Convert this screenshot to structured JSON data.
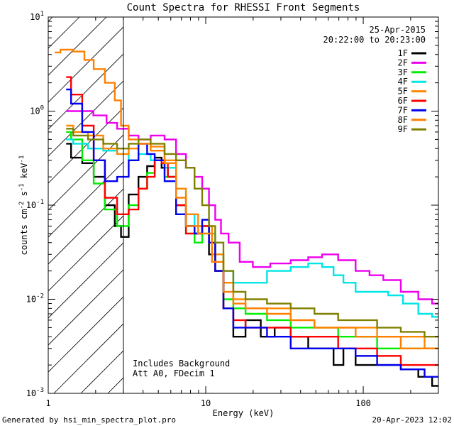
{
  "chart_data": {
    "type": "line",
    "title": "Count Spectra for RHESSI Front Segments",
    "xlabel": "Energy (keV)",
    "ylabel_main": "counts cm",
    "ylabel_sup1": "-2",
    "ylabel_mid1": " s",
    "ylabel_sup2": "-1",
    "ylabel_mid2": " keV",
    "ylabel_sup3": "-1",
    "x_scale": "log",
    "y_scale": "log",
    "xlim": [
      1,
      300
    ],
    "ylim": [
      0.001,
      10
    ],
    "x_ticks": [
      {
        "value": 1,
        "label": "1"
      },
      {
        "value": 10,
        "label": "10"
      },
      {
        "value": 100,
        "label": "100"
      }
    ],
    "y_ticks": [
      {
        "value": 0.001,
        "base": "10",
        "exp": "-3"
      },
      {
        "value": 0.01,
        "base": "10",
        "exp": "-2"
      },
      {
        "value": 0.1,
        "base": "10",
        "exp": "-1"
      },
      {
        "value": 1,
        "base": "10",
        "exp": "0"
      },
      {
        "value": 10,
        "base": "10",
        "exp": "1"
      }
    ],
    "info_date": "25-Apr-2015",
    "info_time": "20:22:00 to 20:23:00",
    "annotations": [
      "Includes Background",
      "Att A0, FDecim 1"
    ],
    "hatched_below_energy": 3,
    "footer_left": "Generated by hsi_min_spectra_plot.pro",
    "footer_right": "20-Apr-2023 12:02",
    "series": [
      {
        "name": "1F",
        "color": "#000000",
        "points": [
          [
            1.3,
            0.45
          ],
          [
            1.5,
            0.32
          ],
          [
            1.8,
            0.28
          ],
          [
            2.1,
            0.2
          ],
          [
            2.5,
            0.1
          ],
          [
            2.8,
            0.06
          ],
          [
            3.0,
            0.046
          ],
          [
            3.5,
            0.13
          ],
          [
            4.0,
            0.2
          ],
          [
            4.5,
            0.26
          ],
          [
            5.0,
            0.32
          ],
          [
            5.5,
            0.25
          ],
          [
            6.0,
            0.2
          ],
          [
            7.0,
            0.1
          ],
          [
            8.0,
            0.06
          ],
          [
            9.0,
            0.05
          ],
          [
            10.0,
            0.06
          ],
          [
            11.0,
            0.03
          ],
          [
            12.0,
            0.02
          ],
          [
            14.0,
            0.008
          ],
          [
            16.0,
            0.004
          ],
          [
            20.0,
            0.006
          ],
          [
            25.0,
            0.004
          ],
          [
            30.0,
            0.005
          ],
          [
            40.0,
            0.004
          ],
          [
            50.0,
            0.003
          ],
          [
            60.0,
            0.003
          ],
          [
            70.0,
            0.002
          ],
          [
            80.0,
            0.003
          ],
          [
            100.0,
            0.002
          ],
          [
            150.0,
            0.002
          ],
          [
            200.0,
            0.0018
          ],
          [
            250.0,
            0.0015
          ],
          [
            300.0,
            0.0012
          ]
        ]
      },
      {
        "name": "2F",
        "color": "#ee00ee",
        "points": [
          [
            1.3,
            1.0
          ],
          [
            1.7,
            1.0
          ],
          [
            2.2,
            0.9
          ],
          [
            2.5,
            0.75
          ],
          [
            3.0,
            0.65
          ],
          [
            3.5,
            0.55
          ],
          [
            4.0,
            0.5
          ],
          [
            5.0,
            0.55
          ],
          [
            6.0,
            0.5
          ],
          [
            7.0,
            0.35
          ],
          [
            8.0,
            0.25
          ],
          [
            9.0,
            0.2
          ],
          [
            10.0,
            0.15
          ],
          [
            11.0,
            0.1
          ],
          [
            12.0,
            0.07
          ],
          [
            13.0,
            0.05
          ],
          [
            15.0,
            0.04
          ],
          [
            18.0,
            0.025
          ],
          [
            22.0,
            0.022
          ],
          [
            30.0,
            0.024
          ],
          [
            40.0,
            0.026
          ],
          [
            50.0,
            0.028
          ],
          [
            60.0,
            0.03
          ],
          [
            80.0,
            0.026
          ],
          [
            100.0,
            0.02
          ],
          [
            120.0,
            0.018
          ],
          [
            150.0,
            0.016
          ],
          [
            200.0,
            0.012
          ],
          [
            250.0,
            0.01
          ],
          [
            300.0,
            0.009
          ]
        ]
      },
      {
        "name": "3F",
        "color": "#00ee00",
        "points": [
          [
            1.3,
            0.6
          ],
          [
            1.5,
            0.5
          ],
          [
            1.8,
            0.3
          ],
          [
            2.1,
            0.17
          ],
          [
            2.5,
            0.09
          ],
          [
            3.0,
            0.06
          ],
          [
            3.5,
            0.1
          ],
          [
            4.0,
            0.15
          ],
          [
            4.5,
            0.22
          ],
          [
            5.0,
            0.3
          ],
          [
            6.0,
            0.2
          ],
          [
            7.0,
            0.08
          ],
          [
            8.0,
            0.05
          ],
          [
            9.0,
            0.04
          ],
          [
            10.0,
            0.05
          ],
          [
            11.0,
            0.04
          ],
          [
            12.0,
            0.02
          ],
          [
            14.0,
            0.01
          ],
          [
            16.0,
            0.008
          ],
          [
            20.0,
            0.007
          ],
          [
            30.0,
            0.006
          ],
          [
            40.0,
            0.005
          ],
          [
            60.0,
            0.005
          ],
          [
            80.0,
            0.004
          ],
          [
            100.0,
            0.004
          ],
          [
            150.0,
            0.003
          ],
          [
            200.0,
            0.003
          ],
          [
            300.0,
            0.003
          ]
        ]
      },
      {
        "name": "4F",
        "color": "#00e5e5",
        "points": [
          [
            1.3,
            0.5
          ],
          [
            1.6,
            0.45
          ],
          [
            2.0,
            0.4
          ],
          [
            2.5,
            0.38
          ],
          [
            3.0,
            0.35
          ],
          [
            3.5,
            0.3
          ],
          [
            4.0,
            0.35
          ],
          [
            5.0,
            0.3
          ],
          [
            6.0,
            0.25
          ],
          [
            7.0,
            0.15
          ],
          [
            8.0,
            0.08
          ],
          [
            9.0,
            0.06
          ],
          [
            10.0,
            0.06
          ],
          [
            11.0,
            0.05
          ],
          [
            12.0,
            0.03
          ],
          [
            14.0,
            0.02
          ],
          [
            16.0,
            0.015
          ],
          [
            20.0,
            0.015
          ],
          [
            30.0,
            0.02
          ],
          [
            40.0,
            0.022
          ],
          [
            50.0,
            0.024
          ],
          [
            60.0,
            0.022
          ],
          [
            70.0,
            0.018
          ],
          [
            80.0,
            0.015
          ],
          [
            100.0,
            0.012
          ],
          [
            130.0,
            0.012
          ],
          [
            160.0,
            0.011
          ],
          [
            200.0,
            0.009
          ],
          [
            250.0,
            0.007
          ],
          [
            300.0,
            0.0065
          ]
        ]
      },
      {
        "name": "5F",
        "color": "#ff8800",
        "points": [
          [
            1.3,
            0.7
          ],
          [
            1.6,
            0.6
          ],
          [
            2.0,
            0.55
          ],
          [
            2.5,
            0.4
          ],
          [
            3.0,
            0.35
          ],
          [
            3.5,
            0.4
          ],
          [
            4.0,
            0.45
          ],
          [
            5.0,
            0.42
          ],
          [
            6.0,
            0.3
          ],
          [
            7.0,
            0.15
          ],
          [
            8.0,
            0.08
          ],
          [
            10.0,
            0.06
          ],
          [
            12.0,
            0.03
          ],
          [
            14.0,
            0.015
          ],
          [
            16.0,
            0.01
          ],
          [
            20.0,
            0.008
          ],
          [
            30.0,
            0.008
          ],
          [
            40.0,
            0.006
          ],
          [
            60.0,
            0.005
          ],
          [
            80.0,
            0.005
          ],
          [
            100.0,
            0.005
          ],
          [
            150.0,
            0.004
          ],
          [
            200.0,
            0.004
          ],
          [
            300.0,
            0.003
          ]
        ]
      },
      {
        "name": "6F",
        "color": "#ff0000",
        "points": [
          [
            1.3,
            2.3
          ],
          [
            1.5,
            1.5
          ],
          [
            1.8,
            0.7
          ],
          [
            2.1,
            0.3
          ],
          [
            2.5,
            0.12
          ],
          [
            3.0,
            0.08
          ],
          [
            3.5,
            0.09
          ],
          [
            4.0,
            0.15
          ],
          [
            4.5,
            0.2
          ],
          [
            5.0,
            0.3
          ],
          [
            5.5,
            0.28
          ],
          [
            6.0,
            0.2
          ],
          [
            7.0,
            0.1
          ],
          [
            8.0,
            0.05
          ],
          [
            9.0,
            0.05
          ],
          [
            10.0,
            0.06
          ],
          [
            11.0,
            0.04
          ],
          [
            12.0,
            0.02
          ],
          [
            14.0,
            0.008
          ],
          [
            16.0,
            0.006
          ],
          [
            20.0,
            0.005
          ],
          [
            30.0,
            0.005
          ],
          [
            40.0,
            0.004
          ],
          [
            60.0,
            0.004
          ],
          [
            80.0,
            0.003
          ],
          [
            100.0,
            0.003
          ],
          [
            150.0,
            0.0025
          ],
          [
            200.0,
            0.002
          ],
          [
            300.0,
            0.002
          ]
        ]
      },
      {
        "name": "7F",
        "color": "#0000ee",
        "points": [
          [
            1.3,
            1.7
          ],
          [
            1.5,
            1.2
          ],
          [
            1.8,
            0.6
          ],
          [
            2.1,
            0.3
          ],
          [
            2.5,
            0.18
          ],
          [
            3.0,
            0.2
          ],
          [
            3.5,
            0.3
          ],
          [
            4.0,
            0.45
          ],
          [
            4.5,
            0.35
          ],
          [
            5.0,
            0.3
          ],
          [
            6.0,
            0.18
          ],
          [
            7.0,
            0.08
          ],
          [
            8.0,
            0.06
          ],
          [
            9.0,
            0.05
          ],
          [
            10.0,
            0.07
          ],
          [
            11.0,
            0.04
          ],
          [
            12.0,
            0.02
          ],
          [
            14.0,
            0.008
          ],
          [
            16.0,
            0.005
          ],
          [
            20.0,
            0.005
          ],
          [
            30.0,
            0.004
          ],
          [
            40.0,
            0.003
          ],
          [
            60.0,
            0.003
          ],
          [
            80.0,
            0.003
          ],
          [
            100.0,
            0.0025
          ],
          [
            150.0,
            0.002
          ],
          [
            200.0,
            0.0018
          ],
          [
            300.0,
            0.0015
          ]
        ]
      },
      {
        "name": "8F",
        "color": "#ff8000",
        "points": [
          [
            1.1,
            4.2
          ],
          [
            1.3,
            4.5
          ],
          [
            1.6,
            4.3
          ],
          [
            1.8,
            3.5
          ],
          [
            2.1,
            2.8
          ],
          [
            2.5,
            2.0
          ],
          [
            2.8,
            1.3
          ],
          [
            3.0,
            0.7
          ],
          [
            3.5,
            0.5
          ],
          [
            4.0,
            0.45
          ],
          [
            5.0,
            0.38
          ],
          [
            6.0,
            0.28
          ],
          [
            7.0,
            0.12
          ],
          [
            8.0,
            0.06
          ],
          [
            10.0,
            0.05
          ],
          [
            12.0,
            0.025
          ],
          [
            14.0,
            0.012
          ],
          [
            16.0,
            0.009
          ],
          [
            20.0,
            0.008
          ],
          [
            30.0,
            0.007
          ],
          [
            40.0,
            0.006
          ],
          [
            60.0,
            0.005
          ],
          [
            80.0,
            0.005
          ],
          [
            100.0,
            0.004
          ],
          [
            150.0,
            0.004
          ],
          [
            200.0,
            0.003
          ],
          [
            300.0,
            0.003
          ]
        ]
      },
      {
        "name": "9F",
        "color": "#808000",
        "points": [
          [
            1.3,
            0.65
          ],
          [
            1.6,
            0.55
          ],
          [
            2.0,
            0.5
          ],
          [
            2.5,
            0.45
          ],
          [
            3.0,
            0.4
          ],
          [
            3.5,
            0.45
          ],
          [
            4.0,
            0.5
          ],
          [
            5.0,
            0.45
          ],
          [
            6.0,
            0.35
          ],
          [
            7.0,
            0.3
          ],
          [
            8.0,
            0.25
          ],
          [
            9.0,
            0.15
          ],
          [
            10.0,
            0.1
          ],
          [
            11.0,
            0.06
          ],
          [
            12.0,
            0.04
          ],
          [
            14.0,
            0.02
          ],
          [
            16.0,
            0.012
          ],
          [
            20.0,
            0.01
          ],
          [
            30.0,
            0.009
          ],
          [
            40.0,
            0.008
          ],
          [
            60.0,
            0.007
          ],
          [
            80.0,
            0.006
          ],
          [
            100.0,
            0.006
          ],
          [
            150.0,
            0.005
          ],
          [
            200.0,
            0.0045
          ],
          [
            300.0,
            0.004
          ]
        ]
      }
    ]
  }
}
